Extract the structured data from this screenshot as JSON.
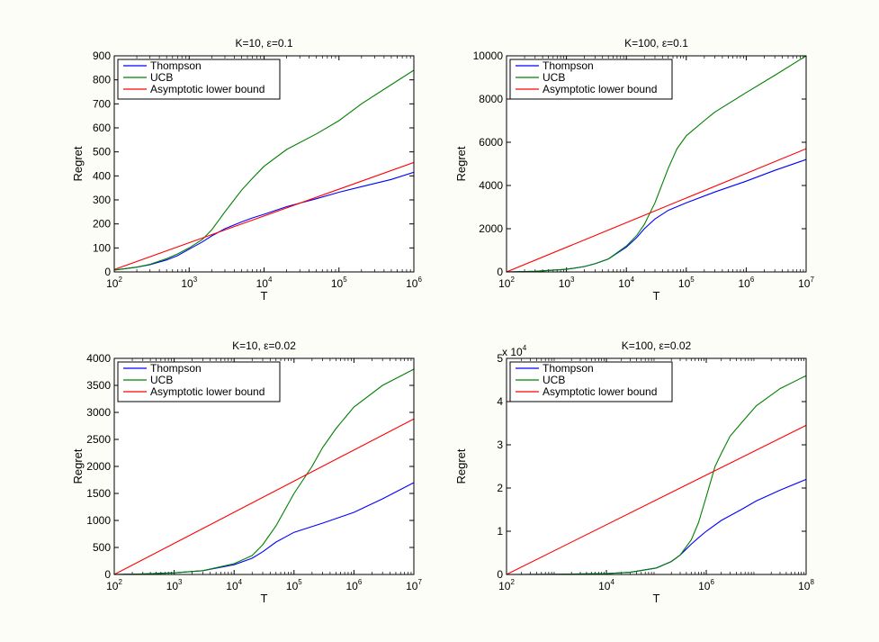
{
  "chart_data": [
    {
      "type": "line",
      "title": "K=10, ε=0.1",
      "xlabel": "T",
      "ylabel": "Regret",
      "xscale": "log",
      "xlim": [
        100,
        1000000
      ],
      "ylim": [
        0,
        900
      ],
      "xticks": [
        100,
        1000,
        10000,
        100000,
        1000000
      ],
      "xtick_labels": [
        {
          "base": "10",
          "exp": "2"
        },
        {
          "base": "10",
          "exp": "3"
        },
        {
          "base": "10",
          "exp": "4"
        },
        {
          "base": "10",
          "exp": "5"
        },
        {
          "base": "10",
          "exp": "6"
        }
      ],
      "yticks": [
        0,
        100,
        200,
        300,
        400,
        500,
        600,
        700,
        800,
        900
      ],
      "ytick_labels": [
        "0",
        "100",
        "200",
        "300",
        "400",
        "500",
        "600",
        "700",
        "800",
        "900"
      ],
      "y_multiplier": "",
      "legend_position": "top-left",
      "series": [
        {
          "name": "Thompson",
          "color": "#0000ff",
          "x": [
            100,
            200,
            300,
            500,
            700,
            1000,
            1500,
            2000,
            3000,
            5000,
            7000,
            10000,
            20000,
            50000,
            100000,
            200000,
            500000,
            1000000
          ],
          "y": [
            8,
            20,
            30,
            50,
            68,
            95,
            125,
            150,
            180,
            208,
            225,
            240,
            272,
            305,
            332,
            355,
            385,
            415
          ]
        },
        {
          "name": "UCB",
          "color": "#008000",
          "x": [
            100,
            200,
            300,
            500,
            700,
            1000,
            1500,
            2000,
            3000,
            5000,
            7000,
            10000,
            20000,
            50000,
            100000,
            200000,
            500000,
            1000000
          ],
          "y": [
            8,
            20,
            32,
            55,
            75,
            100,
            135,
            175,
            250,
            340,
            390,
            440,
            510,
            575,
            630,
            700,
            780,
            840
          ]
        },
        {
          "name": "Asymptotic lower bound",
          "color": "#ff0000",
          "x": [
            100,
            1000000
          ],
          "y": [
            10,
            456
          ]
        }
      ]
    },
    {
      "type": "line",
      "title": "K=100, ε=0.1",
      "xlabel": "T",
      "ylabel": "Regret",
      "xscale": "log",
      "xlim": [
        100,
        10000000
      ],
      "ylim": [
        0,
        10000
      ],
      "xticks": [
        100,
        1000,
        10000,
        100000,
        1000000,
        10000000
      ],
      "xtick_labels": [
        {
          "base": "10",
          "exp": "2"
        },
        {
          "base": "10",
          "exp": "3"
        },
        {
          "base": "10",
          "exp": "4"
        },
        {
          "base": "10",
          "exp": "5"
        },
        {
          "base": "10",
          "exp": "6"
        },
        {
          "base": "10",
          "exp": "7"
        }
      ],
      "yticks": [
        0,
        2000,
        4000,
        6000,
        8000,
        10000
      ],
      "ytick_labels": [
        "0",
        "2000",
        "4000",
        "6000",
        "8000",
        "10000"
      ],
      "y_multiplier": "",
      "legend_position": "top-left",
      "series": [
        {
          "name": "Thompson",
          "color": "#0000ff",
          "x": [
            100,
            300,
            1000,
            2000,
            3000,
            5000,
            10000,
            15000,
            20000,
            30000,
            50000,
            100000,
            300000,
            1000000,
            3000000,
            10000000
          ],
          "y": [
            0,
            30,
            120,
            250,
            380,
            600,
            1150,
            1600,
            2000,
            2450,
            2850,
            3200,
            3700,
            4200,
            4700,
            5200
          ]
        },
        {
          "name": "UCB",
          "color": "#008000",
          "x": [
            100,
            300,
            1000,
            2000,
            3000,
            5000,
            10000,
            15000,
            20000,
            30000,
            50000,
            70000,
            100000,
            200000,
            300000,
            1000000,
            3000000,
            10000000
          ],
          "y": [
            0,
            30,
            120,
            250,
            380,
            600,
            1200,
            1700,
            2200,
            3200,
            4800,
            5700,
            6300,
            7000,
            7400,
            8300,
            9100,
            10000
          ]
        },
        {
          "name": "Asymptotic lower bound",
          "color": "#ff0000",
          "x": [
            100,
            10000000
          ],
          "y": [
            0,
            5700
          ]
        }
      ]
    },
    {
      "type": "line",
      "title": "K=10, ε=0.02",
      "xlabel": "T",
      "ylabel": "Regret",
      "xscale": "log",
      "xlim": [
        100,
        10000000
      ],
      "ylim": [
        0,
        4000
      ],
      "xticks": [
        100,
        1000,
        10000,
        100000,
        1000000,
        10000000
      ],
      "xtick_labels": [
        {
          "base": "10",
          "exp": "2"
        },
        {
          "base": "10",
          "exp": "3"
        },
        {
          "base": "10",
          "exp": "4"
        },
        {
          "base": "10",
          "exp": "5"
        },
        {
          "base": "10",
          "exp": "6"
        },
        {
          "base": "10",
          "exp": "7"
        }
      ],
      "yticks": [
        0,
        500,
        1000,
        1500,
        2000,
        2500,
        3000,
        3500,
        4000
      ],
      "ytick_labels": [
        "0",
        "500",
        "1000",
        "1500",
        "2000",
        "2500",
        "3000",
        "3500",
        "4000"
      ],
      "y_multiplier": "",
      "legend_position": "top-left",
      "series": [
        {
          "name": "Thompson",
          "color": "#0000ff",
          "x": [
            100,
            300,
            1000,
            3000,
            10000,
            20000,
            30000,
            50000,
            100000,
            300000,
            1000000,
            3000000,
            10000000
          ],
          "y": [
            0,
            10,
            30,
            70,
            180,
            300,
            420,
            600,
            780,
            950,
            1150,
            1400,
            1700
          ]
        },
        {
          "name": "UCB",
          "color": "#008000",
          "x": [
            100,
            300,
            1000,
            3000,
            10000,
            20000,
            30000,
            50000,
            100000,
            200000,
            300000,
            500000,
            1000000,
            3000000,
            10000000
          ],
          "y": [
            0,
            10,
            30,
            70,
            200,
            350,
            550,
            900,
            1500,
            2000,
            2350,
            2700,
            3100,
            3500,
            3800
          ]
        },
        {
          "name": "Asymptotic lower bound",
          "color": "#ff0000",
          "x": [
            100,
            10000000
          ],
          "y": [
            0,
            2880
          ]
        }
      ]
    },
    {
      "type": "line",
      "title": "K=100, ε=0.02",
      "xlabel": "T",
      "ylabel": "Regret",
      "xscale": "log",
      "xlim": [
        100,
        100000000
      ],
      "ylim": [
        0,
        50000
      ],
      "xticks": [
        100,
        10000,
        1000000,
        100000000
      ],
      "xtick_labels": [
        {
          "base": "10",
          "exp": "2"
        },
        {
          "base": "10",
          "exp": "4"
        },
        {
          "base": "10",
          "exp": "6"
        },
        {
          "base": "10",
          "exp": "8"
        }
      ],
      "yticks": [
        0,
        10000,
        20000,
        30000,
        40000,
        50000
      ],
      "ytick_labels": [
        "0",
        "1",
        "2",
        "3",
        "4",
        "5"
      ],
      "y_multiplier": {
        "prefix": "x 10",
        "exp": "4"
      },
      "legend_position": "top-left",
      "series": [
        {
          "name": "Thompson",
          "color": "#0000ff",
          "x": [
            100,
            1000,
            10000,
            30000,
            100000,
            200000,
            300000,
            500000,
            700000,
            1000000,
            2000000,
            5000000,
            10000000,
            30000000,
            100000000
          ],
          "y": [
            0,
            50,
            200,
            500,
            1500,
            3000,
            4500,
            7000,
            8500,
            10000,
            12500,
            15000,
            17000,
            19500,
            22000
          ]
        },
        {
          "name": "UCB",
          "color": "#008000",
          "x": [
            100,
            1000,
            10000,
            30000,
            100000,
            200000,
            300000,
            500000,
            700000,
            1000000,
            1500000,
            2000000,
            3000000,
            5000000,
            10000000,
            30000000,
            100000000
          ],
          "y": [
            0,
            50,
            200,
            500,
            1500,
            3000,
            4500,
            8000,
            12000,
            18000,
            25000,
            28000,
            32000,
            35000,
            39000,
            43000,
            46000
          ]
        },
        {
          "name": "Asymptotic lower bound",
          "color": "#ff0000",
          "x": [
            100,
            100000000
          ],
          "y": [
            0,
            34500
          ]
        }
      ]
    }
  ]
}
